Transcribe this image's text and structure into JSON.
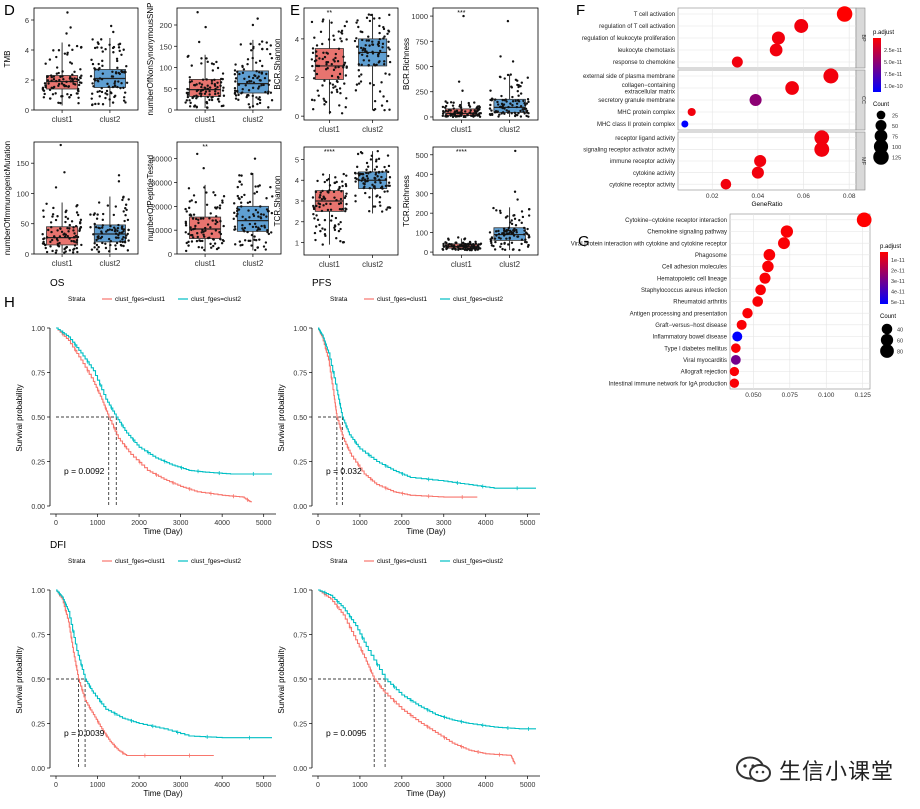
{
  "watermark": "生信小课堂",
  "colors": {
    "clust1": "#F8766D",
    "clust2": "#00BFC4",
    "box1": "#E8746F",
    "box2": "#5F9FD2",
    "padjHigh": "#FF0000",
    "padjLow": "#0000FF"
  },
  "panel_letters": {
    "D": "D",
    "E": "E",
    "F": "F",
    "G": "G",
    "H": "H"
  },
  "boxplots": {
    "groups": [
      "clust1",
      "clust2"
    ],
    "panels": [
      {
        "id": "tmb",
        "ylabel": "TMB",
        "yticks": [
          "0",
          "2",
          "4",
          "6"
        ],
        "ymin": 0,
        "ymax": 6.8,
        "sig": "",
        "g1": {
          "min": 0.3,
          "q1": 1.4,
          "med": 1.9,
          "q3": 2.3,
          "max": 4.5,
          "outliers": [
            5.1,
            5.5,
            6.5
          ]
        },
        "g2": {
          "min": 0.2,
          "q1": 1.5,
          "med": 2.1,
          "q3": 2.7,
          "max": 4.8,
          "outliers": [
            5.2,
            5.6
          ]
        }
      },
      {
        "id": "nonsyn",
        "ylabel": "numberOfNonSynonymousSNP",
        "yticks": [
          "0",
          "50",
          "100",
          "150",
          "200"
        ],
        "ymin": 0,
        "ymax": 240,
        "sig": "",
        "g1": {
          "min": 5,
          "q1": 32,
          "med": 48,
          "q3": 72,
          "max": 130,
          "outliers": [
            160,
            195,
            230
          ]
        },
        "g2": {
          "min": 5,
          "q1": 40,
          "med": 62,
          "q3": 92,
          "max": 165,
          "outliers": [
            200,
            215
          ]
        }
      },
      {
        "id": "immuno",
        "ylabel": "numberOfImmunogenicMutation",
        "yticks": [
          "0",
          "50",
          "100",
          "150"
        ],
        "ymin": 0,
        "ymax": 185,
        "sig": "",
        "g1": {
          "min": 2,
          "q1": 15,
          "med": 27,
          "q3": 45,
          "max": 85,
          "outliers": [
            110,
            135,
            180
          ]
        },
        "g2": {
          "min": 2,
          "q1": 20,
          "med": 33,
          "q3": 48,
          "max": 95,
          "outliers": [
            120,
            130
          ]
        }
      },
      {
        "id": "peptide",
        "ylabel": "numberOfPeptideTested",
        "yticks": [
          "0",
          "10000",
          "20000",
          "30000",
          "40000"
        ],
        "ymin": 0,
        "ymax": 47000,
        "sig": "**",
        "g1": {
          "min": 1000,
          "q1": 6500,
          "med": 10500,
          "q3": 15500,
          "max": 29000,
          "outliers": [
            36000,
            42000
          ]
        },
        "g2": {
          "min": 1500,
          "q1": 9500,
          "med": 14000,
          "q3": 20000,
          "max": 34000,
          "outliers": [
            40000
          ]
        }
      },
      {
        "id": "bcrsh",
        "ylabel": "BCR.Shannon",
        "yticks": [
          "0",
          "2",
          "4"
        ],
        "ymin": -0.2,
        "ymax": 5.6,
        "sig": "**",
        "g1": {
          "min": 0.1,
          "q1": 1.9,
          "med": 2.6,
          "q3": 3.5,
          "max": 5.0,
          "outliers": []
        },
        "g2": {
          "min": 0.3,
          "q1": 2.6,
          "med": 3.3,
          "q3": 4.0,
          "max": 5.3,
          "outliers": []
        }
      },
      {
        "id": "bcrri",
        "ylabel": "BCR.Richness",
        "yticks": [
          "0",
          "250",
          "500",
          "750",
          "1000"
        ],
        "ymin": -30,
        "ymax": 1080,
        "sig": "***",
        "g1": {
          "min": 0,
          "q1": 15,
          "med": 35,
          "q3": 80,
          "max": 160,
          "outliers": [
            260,
            350,
            1000
          ]
        },
        "g2": {
          "min": 0,
          "q1": 45,
          "med": 95,
          "q3": 175,
          "max": 420,
          "outliers": [
            550,
            600,
            950
          ]
        }
      },
      {
        "id": "tcrsh",
        "ylabel": "TCR.Shannon",
        "yticks": [
          "1",
          "2",
          "3",
          "4",
          "5"
        ],
        "ymin": 0.4,
        "ymax": 5.6,
        "sig": "****",
        "g1": {
          "min": 0.9,
          "q1": 2.5,
          "med": 3.0,
          "q3": 3.5,
          "max": 4.3,
          "outliers": []
        },
        "g2": {
          "min": 2.4,
          "q1": 3.6,
          "med": 4.0,
          "q3": 4.4,
          "max": 5.4,
          "outliers": []
        }
      },
      {
        "id": "tcrri",
        "ylabel": "TCR.Richness",
        "yticks": [
          "0",
          "100",
          "200",
          "300",
          "400",
          "500"
        ],
        "ymin": -15,
        "ymax": 540,
        "sig": "****",
        "g1": {
          "min": 10,
          "q1": 20,
          "med": 28,
          "q3": 42,
          "max": 70,
          "outliers": [
            75
          ]
        },
        "g2": {
          "min": 10,
          "q1": 60,
          "med": 90,
          "q3": 125,
          "max": 230,
          "outliers": [
            270,
            310,
            520
          ]
        }
      }
    ]
  },
  "go_dot": {
    "xlabel": "GeneRatio",
    "xticks": [
      "0.02",
      "0.04",
      "0.06",
      "0.08"
    ],
    "xlim": [
      0.005,
      0.083
    ],
    "legend_title_color": "p.adjust",
    "color_ticks": [
      "2.5e-11",
      "5.0e-11",
      "7.5e-11",
      "1.0e-10"
    ],
    "legend_title_size": "Count",
    "size_values": [
      "25",
      "50",
      "75",
      "100",
      "125"
    ],
    "facets": [
      {
        "label": "BP",
        "terms": [
          {
            "name": "T cell activation",
            "x": 0.078,
            "count": 125,
            "pv": 0.0
          },
          {
            "name": "regulation of T cell activation",
            "x": 0.059,
            "count": 95,
            "pv": 0.05
          },
          {
            "name": "regulation of leukocyte proliferation",
            "x": 0.049,
            "count": 80,
            "pv": 0.05
          },
          {
            "name": "leukocyte chemotaxis",
            "x": 0.048,
            "count": 75,
            "pv": 0.05
          },
          {
            "name": "response to chemokine",
            "x": 0.031,
            "count": 50,
            "pv": 0.05
          }
        ]
      },
      {
        "label": "CC",
        "terms": [
          {
            "name": "external side of plasma membrane",
            "x": 0.072,
            "count": 115,
            "pv": 0.05
          },
          {
            "name": "collagen−containing\nextracellular matrix",
            "x": 0.055,
            "count": 90,
            "pv": 0.05
          },
          {
            "name": "secretory granule membrane",
            "x": 0.039,
            "count": 65,
            "pv": 0.45
          },
          {
            "name": "MHC protein complex",
            "x": 0.011,
            "count": 20,
            "pv": 0.05
          },
          {
            "name": "MHC class II protein complex",
            "x": 0.008,
            "count": 12,
            "pv": 1.0
          }
        ]
      },
      {
        "label": "MF",
        "terms": [
          {
            "name": "receptor ligand activity",
            "x": 0.068,
            "count": 110,
            "pv": 0.05
          },
          {
            "name": "signaling receptor activator activity",
            "x": 0.068,
            "count": 112,
            "pv": 0.05
          },
          {
            "name": "immune receptor activity",
            "x": 0.041,
            "count": 65,
            "pv": 0.05
          },
          {
            "name": "cytokine activity",
            "x": 0.04,
            "count": 65,
            "pv": 0.05
          },
          {
            "name": "cytokine receptor activity",
            "x": 0.026,
            "count": 45,
            "pv": 0.05
          }
        ]
      }
    ]
  },
  "kegg_dot": {
    "xticks": [
      "0.050",
      "0.075",
      "0.100",
      "0.125"
    ],
    "xlim": [
      0.034,
      0.13
    ],
    "legend_title_color": "p.adjust",
    "color_ticks": [
      "1e-11",
      "2e-11",
      "3e-11",
      "4e-11",
      "5e-11"
    ],
    "legend_title_size": "Count",
    "size_values": [
      "40",
      "60",
      "80"
    ],
    "terms": [
      {
        "name": "Cytokine−cytokine receptor interaction",
        "x": 0.126,
        "count": 95,
        "pv": 0.0
      },
      {
        "name": "Chemokine signaling pathway",
        "x": 0.073,
        "count": 60,
        "pv": 0.02
      },
      {
        "name": "Viral protein interaction with cytokine and cytokine receptor",
        "x": 0.071,
        "count": 55,
        "pv": 0.02
      },
      {
        "name": "Phagosome",
        "x": 0.061,
        "count": 52,
        "pv": 0.02
      },
      {
        "name": "Cell adhesion molecules",
        "x": 0.06,
        "count": 50,
        "pv": 0.02
      },
      {
        "name": "Hematopoietic cell lineage",
        "x": 0.058,
        "count": 45,
        "pv": 0.02
      },
      {
        "name": "Staphylococcus aureus infection",
        "x": 0.055,
        "count": 40,
        "pv": 0.02
      },
      {
        "name": "Rheumatoid arthritis",
        "x": 0.053,
        "count": 40,
        "pv": 0.02
      },
      {
        "name": "Antigen processing and presentation",
        "x": 0.046,
        "count": 38,
        "pv": 0.02
      },
      {
        "name": "Graft−versus−host disease",
        "x": 0.042,
        "count": 34,
        "pv": 0.02
      },
      {
        "name": "Inflammatory bowel disease",
        "x": 0.039,
        "count": 34,
        "pv": 1.0
      },
      {
        "name": "Type I diabetes mellitus",
        "x": 0.038,
        "count": 30,
        "pv": 0.02
      },
      {
        "name": "Viral myocarditis",
        "x": 0.038,
        "count": 32,
        "pv": 0.55
      },
      {
        "name": "Allograft rejection",
        "x": 0.037,
        "count": 28,
        "pv": 0.02
      },
      {
        "name": "Intestinal immune network for IgA production",
        "x": 0.037,
        "count": 28,
        "pv": 0.02
      }
    ]
  },
  "km": {
    "legend_title": "Strata",
    "legend_items": [
      "clust_fges=clust1",
      "clust_fges=clust2"
    ],
    "ylabel": "Survival probability",
    "xlabel": "Time (Day)",
    "yticks": [
      "0.00",
      "0.25",
      "0.50",
      "0.75",
      "1.00"
    ],
    "panels": [
      {
        "id": "os",
        "title": "OS",
        "pval": "p = 0.0092",
        "xticks": [
          "0",
          "1000",
          "2000",
          "3000",
          "4000",
          "5000"
        ],
        "xmax": 5200,
        "med1": 1270,
        "med2": 1450,
        "c1": [
          [
            0,
            1
          ],
          [
            300,
            0.93
          ],
          [
            600,
            0.82
          ],
          [
            900,
            0.7
          ],
          [
            1100,
            0.6
          ],
          [
            1270,
            0.5
          ],
          [
            1500,
            0.38
          ],
          [
            1800,
            0.29
          ],
          [
            2200,
            0.2
          ],
          [
            2600,
            0.15
          ],
          [
            3000,
            0.11
          ],
          [
            3400,
            0.08
          ],
          [
            4000,
            0.06
          ],
          [
            4500,
            0.05
          ],
          [
            4700,
            0.02
          ]
        ],
        "c2": [
          [
            0,
            1
          ],
          [
            300,
            0.95
          ],
          [
            600,
            0.86
          ],
          [
            900,
            0.76
          ],
          [
            1200,
            0.6
          ],
          [
            1450,
            0.5
          ],
          [
            1700,
            0.41
          ],
          [
            2000,
            0.33
          ],
          [
            2400,
            0.27
          ],
          [
            2800,
            0.23
          ],
          [
            3200,
            0.2
          ],
          [
            3600,
            0.19
          ],
          [
            4200,
            0.18
          ],
          [
            5200,
            0.18
          ]
        ]
      },
      {
        "id": "pfs",
        "title": "PFS",
        "pval": "p = 0.032",
        "xticks": [
          "0",
          "1000",
          "2000",
          "3000",
          "4000",
          "5000"
        ],
        "xmax": 5200,
        "med1": 450,
        "med2": 580,
        "c1": [
          [
            0,
            1
          ],
          [
            100,
            0.95
          ],
          [
            250,
            0.82
          ],
          [
            380,
            0.62
          ],
          [
            450,
            0.5
          ],
          [
            600,
            0.38
          ],
          [
            800,
            0.28
          ],
          [
            1100,
            0.18
          ],
          [
            1400,
            0.12
          ],
          [
            1800,
            0.08
          ],
          [
            2200,
            0.06
          ],
          [
            3000,
            0.05
          ],
          [
            3800,
            0.05
          ]
        ],
        "c2": [
          [
            0,
            1
          ],
          [
            100,
            0.96
          ],
          [
            250,
            0.86
          ],
          [
            450,
            0.65
          ],
          [
            580,
            0.5
          ],
          [
            750,
            0.4
          ],
          [
            1000,
            0.32
          ],
          [
            1400,
            0.25
          ],
          [
            1800,
            0.2
          ],
          [
            2200,
            0.16
          ],
          [
            3000,
            0.14
          ],
          [
            3600,
            0.12
          ],
          [
            4200,
            0.1
          ],
          [
            5200,
            0.1
          ]
        ]
      },
      {
        "id": "dfi",
        "title": "DFI",
        "pval": "p = 0.0039",
        "xticks": [
          "0",
          "1000",
          "2000",
          "3000",
          "4000",
          "5000"
        ],
        "xmax": 5200,
        "med1": 540,
        "med2": 700,
        "c1": [
          [
            0,
            1
          ],
          [
            150,
            0.95
          ],
          [
            300,
            0.82
          ],
          [
            420,
            0.65
          ],
          [
            540,
            0.5
          ],
          [
            700,
            0.38
          ],
          [
            900,
            0.3
          ],
          [
            1100,
            0.22
          ],
          [
            1300,
            0.15
          ],
          [
            1500,
            0.1
          ],
          [
            1700,
            0.07
          ],
          [
            2500,
            0.07
          ],
          [
            3800,
            0.07
          ]
        ],
        "c2": [
          [
            0,
            1
          ],
          [
            150,
            0.96
          ],
          [
            300,
            0.88
          ],
          [
            500,
            0.66
          ],
          [
            700,
            0.5
          ],
          [
            900,
            0.42
          ],
          [
            1200,
            0.33
          ],
          [
            1600,
            0.28
          ],
          [
            2000,
            0.25
          ],
          [
            2600,
            0.22
          ],
          [
            3200,
            0.18
          ],
          [
            4000,
            0.17
          ],
          [
            5200,
            0.17
          ]
        ]
      },
      {
        "id": "dss",
        "title": "DSS",
        "pval": "p = 0.0095",
        "xticks": [
          "0",
          "1000",
          "2000",
          "3000",
          "4000",
          "5000"
        ],
        "xmax": 5200,
        "med1": 1340,
        "med2": 1600,
        "c1": [
          [
            0,
            1
          ],
          [
            300,
            0.95
          ],
          [
            600,
            0.86
          ],
          [
            900,
            0.72
          ],
          [
            1150,
            0.6
          ],
          [
            1340,
            0.5
          ],
          [
            1600,
            0.42
          ],
          [
            2000,
            0.33
          ],
          [
            2400,
            0.26
          ],
          [
            2800,
            0.2
          ],
          [
            3200,
            0.14
          ],
          [
            3600,
            0.1
          ],
          [
            4000,
            0.08
          ],
          [
            4600,
            0.07
          ],
          [
            4700,
            0.02
          ]
        ],
        "c2": [
          [
            0,
            1
          ],
          [
            300,
            0.97
          ],
          [
            600,
            0.9
          ],
          [
            900,
            0.8
          ],
          [
            1200,
            0.66
          ],
          [
            1600,
            0.5
          ],
          [
            2000,
            0.41
          ],
          [
            2400,
            0.35
          ],
          [
            2800,
            0.3
          ],
          [
            3200,
            0.27
          ],
          [
            3600,
            0.25
          ],
          [
            4200,
            0.23
          ],
          [
            4800,
            0.22
          ],
          [
            5200,
            0.22
          ]
        ]
      }
    ]
  }
}
